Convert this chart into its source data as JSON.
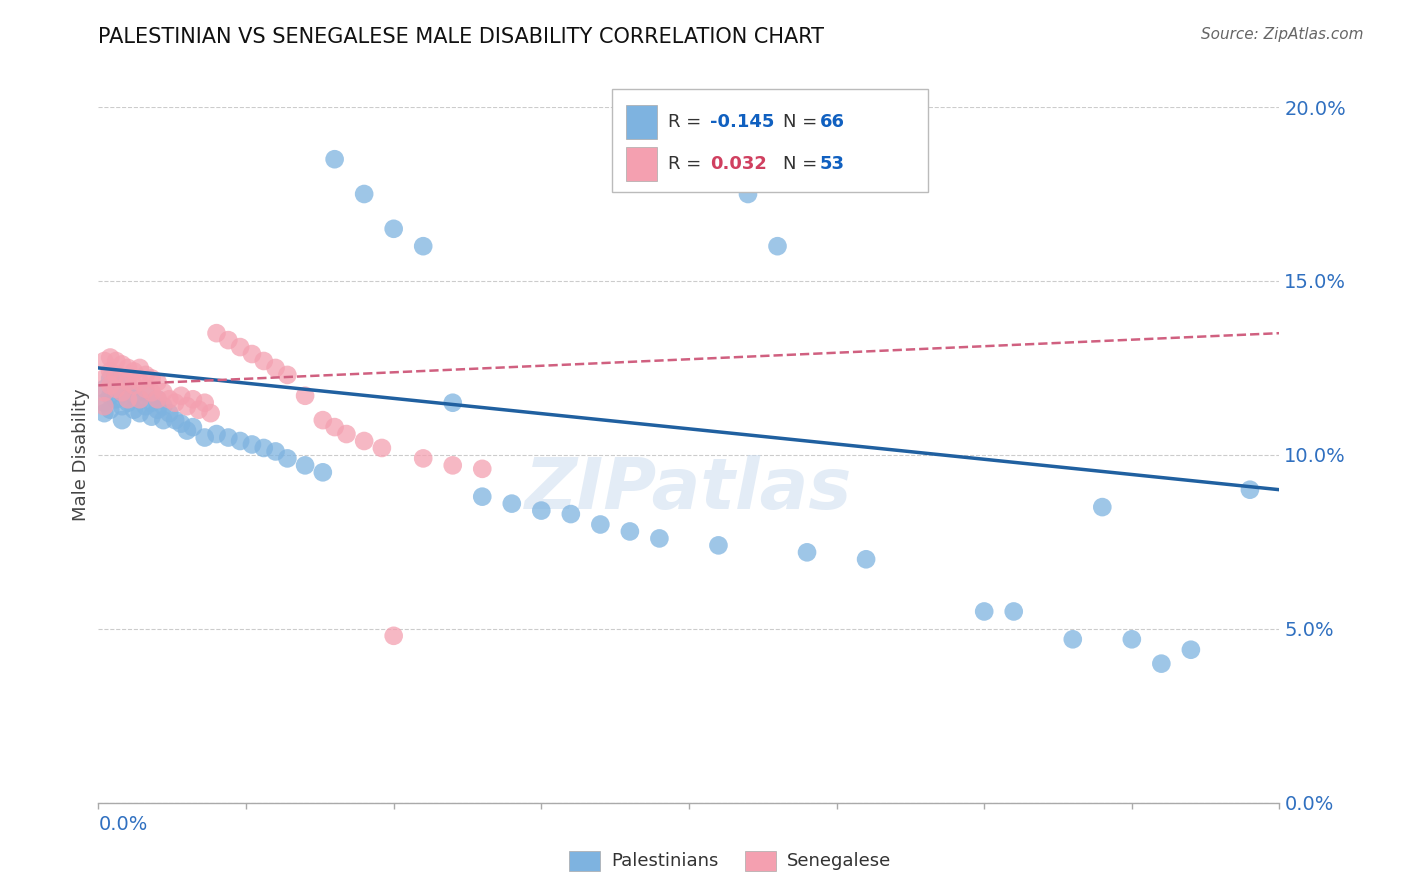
{
  "title": "PALESTINIAN VS SENEGALESE MALE DISABILITY CORRELATION CHART",
  "source": "Source: ZipAtlas.com",
  "ylabel": "Male Disability",
  "xlim": [
    0.0,
    0.2
  ],
  "ylim": [
    0.0,
    0.2
  ],
  "ytick_values": [
    0.0,
    0.05,
    0.1,
    0.15,
    0.2
  ],
  "blue_color": "#7EB3E0",
  "pink_color": "#F4A0B0",
  "blue_line_color": "#2060A0",
  "pink_line_color": "#D06080",
  "r_blue_color": "#1060C0",
  "r_pink_color": "#D04060",
  "n_color": "#1060C0",
  "watermark": "ZIPatlas",
  "blue_line": [
    0.0,
    0.125,
    0.2,
    0.09
  ],
  "pink_line": [
    0.0,
    0.12,
    0.2,
    0.135
  ],
  "pal_x": [
    0.001,
    0.001,
    0.001,
    0.002,
    0.002,
    0.002,
    0.003,
    0.003,
    0.004,
    0.004,
    0.004,
    0.005,
    0.005,
    0.006,
    0.006,
    0.007,
    0.007,
    0.008,
    0.008,
    0.009,
    0.009,
    0.01,
    0.01,
    0.011,
    0.011,
    0.012,
    0.013,
    0.014,
    0.015,
    0.016,
    0.018,
    0.02,
    0.022,
    0.024,
    0.026,
    0.028,
    0.03,
    0.032,
    0.035,
    0.038,
    0.04,
    0.045,
    0.05,
    0.055,
    0.06,
    0.065,
    0.07,
    0.075,
    0.08,
    0.085,
    0.09,
    0.095,
    0.1,
    0.105,
    0.11,
    0.115,
    0.12,
    0.13,
    0.15,
    0.155,
    0.165,
    0.17,
    0.175,
    0.18,
    0.185,
    0.195
  ],
  "pal_y": [
    0.119,
    0.115,
    0.112,
    0.122,
    0.117,
    0.113,
    0.121,
    0.116,
    0.118,
    0.114,
    0.11,
    0.12,
    0.115,
    0.117,
    0.113,
    0.116,
    0.112,
    0.118,
    0.114,
    0.115,
    0.111,
    0.116,
    0.113,
    0.114,
    0.11,
    0.112,
    0.11,
    0.109,
    0.107,
    0.108,
    0.105,
    0.106,
    0.105,
    0.104,
    0.103,
    0.102,
    0.101,
    0.099,
    0.097,
    0.095,
    0.185,
    0.175,
    0.165,
    0.16,
    0.115,
    0.088,
    0.086,
    0.084,
    0.083,
    0.08,
    0.078,
    0.076,
    0.185,
    0.074,
    0.175,
    0.16,
    0.072,
    0.07,
    0.055,
    0.055,
    0.047,
    0.085,
    0.047,
    0.04,
    0.044,
    0.09
  ],
  "sen_x": [
    0.001,
    0.001,
    0.001,
    0.001,
    0.002,
    0.002,
    0.002,
    0.003,
    0.003,
    0.003,
    0.004,
    0.004,
    0.004,
    0.005,
    0.005,
    0.005,
    0.006,
    0.006,
    0.007,
    0.007,
    0.007,
    0.008,
    0.008,
    0.009,
    0.009,
    0.01,
    0.01,
    0.011,
    0.012,
    0.013,
    0.014,
    0.015,
    0.016,
    0.017,
    0.018,
    0.019,
    0.02,
    0.022,
    0.024,
    0.026,
    0.028,
    0.03,
    0.032,
    0.035,
    0.038,
    0.04,
    0.042,
    0.045,
    0.048,
    0.05,
    0.055,
    0.06,
    0.065
  ],
  "sen_y": [
    0.127,
    0.122,
    0.118,
    0.114,
    0.128,
    0.124,
    0.12,
    0.127,
    0.123,
    0.119,
    0.126,
    0.122,
    0.118,
    0.125,
    0.121,
    0.116,
    0.124,
    0.12,
    0.125,
    0.121,
    0.116,
    0.123,
    0.119,
    0.122,
    0.118,
    0.121,
    0.116,
    0.118,
    0.116,
    0.115,
    0.117,
    0.114,
    0.116,
    0.113,
    0.115,
    0.112,
    0.135,
    0.133,
    0.131,
    0.129,
    0.127,
    0.125,
    0.123,
    0.117,
    0.11,
    0.108,
    0.106,
    0.104,
    0.102,
    0.048,
    0.099,
    0.097,
    0.096
  ]
}
